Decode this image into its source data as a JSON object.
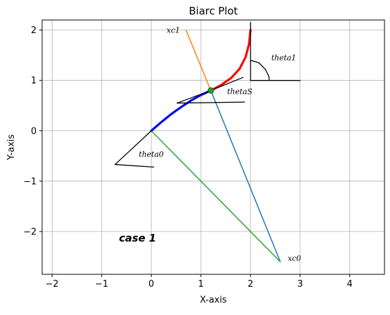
{
  "chart_data": {
    "type": "line",
    "title": "Biarc Plot",
    "xlabel": "X-axis",
    "ylabel": "Y-axis",
    "xlim": [
      -2.2,
      4.7
    ],
    "ylim": [
      -2.85,
      2.2
    ],
    "xticks": [
      -2,
      -1,
      0,
      1,
      2,
      3,
      4
    ],
    "yticks": [
      -2,
      -1,
      0,
      1,
      2
    ],
    "xtick_labels": [
      "−2",
      "−1",
      "0",
      "1",
      "2",
      "3",
      "4"
    ],
    "ytick_labels": [
      "−2",
      "−1",
      "0",
      "1",
      "2"
    ],
    "grid": true,
    "legend": null,
    "series": [
      {
        "role": "arc0",
        "color": "#0000ff",
        "points": [
          [
            0,
            0
          ],
          [
            0.2,
            0.17
          ],
          [
            0.4,
            0.33
          ],
          [
            0.6,
            0.47
          ],
          [
            0.8,
            0.6
          ],
          [
            1.0,
            0.71
          ],
          [
            1.2,
            0.8
          ]
        ]
      },
      {
        "role": "arc1",
        "color": "#ff0000",
        "points": [
          [
            1.2,
            0.8
          ],
          [
            1.41,
            0.91
          ],
          [
            1.61,
            1.05
          ],
          [
            1.78,
            1.23
          ],
          [
            1.9,
            1.46
          ],
          [
            1.97,
            1.72
          ],
          [
            2.0,
            2.0
          ]
        ]
      },
      {
        "role": "radius-to-xc0-blue",
        "color": "#1f77b4",
        "points": [
          [
            1.2,
            0.8
          ],
          [
            2.6,
            -2.6
          ]
        ]
      },
      {
        "role": "radius-from-xc0",
        "color": "#2ca02c",
        "points": [
          [
            0,
            0
          ],
          [
            2.6,
            -2.6
          ]
        ]
      },
      {
        "role": "radius-to-xc1",
        "color": "#ff7f0e",
        "points": [
          [
            0.7,
            2.0
          ],
          [
            1.2,
            0.8
          ]
        ]
      },
      {
        "role": "tangent-start",
        "color": "#000000",
        "points": [
          [
            0,
            0
          ],
          [
            -0.73,
            -0.67
          ]
        ]
      },
      {
        "role": "theta0-baseline",
        "color": "#000000",
        "points": [
          [
            -0.73,
            -0.67
          ],
          [
            0.05,
            -0.72
          ]
        ]
      },
      {
        "role": "tangent-joint",
        "color": "#000000",
        "points": [
          [
            0.52,
            0.55
          ],
          [
            1.2,
            0.8
          ],
          [
            1.85,
            1.06
          ]
        ]
      },
      {
        "role": "thetaS-baseline",
        "color": "#000000",
        "points": [
          [
            0.52,
            0.55
          ],
          [
            1.88,
            0.57
          ]
        ]
      },
      {
        "role": "end-vertical",
        "color": "#000000",
        "points": [
          [
            2.0,
            2.15
          ],
          [
            2.0,
            1.0
          ]
        ]
      },
      {
        "role": "end-horizontal",
        "color": "#000000",
        "points": [
          [
            2.0,
            1.0
          ],
          [
            3.0,
            1.0
          ]
        ]
      }
    ],
    "markers": [
      {
        "name": "joint-point",
        "x": 1.2,
        "y": 0.8,
        "color": "#2ca02c"
      }
    ],
    "angle_arcs": [
      {
        "name": "theta1-arc",
        "center": [
          2.0,
          1.0
        ],
        "points": [
          [
            2.0,
            1.4
          ],
          [
            2.17,
            1.35
          ],
          [
            2.3,
            1.22
          ],
          [
            2.37,
            1.08
          ],
          [
            2.38,
            1.0
          ]
        ]
      }
    ],
    "annotations": [
      {
        "name": "xc1-label",
        "text": "xc1",
        "x": 0.31,
        "y": 1.95
      },
      {
        "name": "theta1-label",
        "text": "theta1",
        "x": 2.42,
        "y": 1.4
      },
      {
        "name": "thetas-label",
        "text": "thetaS",
        "x": 1.53,
        "y": 0.73
      },
      {
        "name": "theta0-label",
        "text": "theta0",
        "x": -0.25,
        "y": -0.52
      },
      {
        "name": "xc0-label",
        "text": "xc0",
        "x": 2.75,
        "y": -2.58
      },
      {
        "name": "case-label",
        "text": "case 1",
        "x": -0.65,
        "y": -2.2
      }
    ]
  }
}
